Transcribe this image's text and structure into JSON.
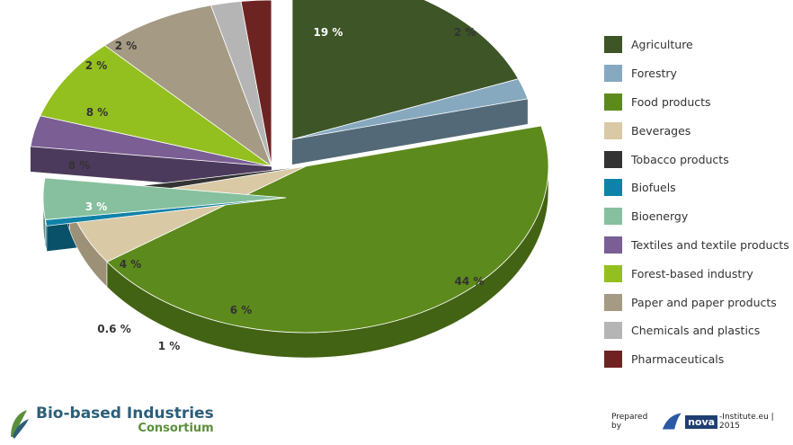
{
  "chart_data": {
    "type": "pie",
    "title": "",
    "style": "3d-exploded",
    "legend_position": "right",
    "slices": [
      {
        "label": "Agriculture",
        "value": 19,
        "value_label": "19 %",
        "color": "#3d5527"
      },
      {
        "label": "Forestry",
        "value": 2,
        "value_label": "2 %",
        "color": "#86a9c0"
      },
      {
        "label": "Food products",
        "value": 44,
        "value_label": "44 %",
        "color": "#5d8a1c"
      },
      {
        "label": "Beverages",
        "value": 6,
        "value_label": "6 %",
        "color": "#d9c9a5"
      },
      {
        "label": "Tobacco products",
        "value": 1,
        "value_label": "1 %",
        "color": "#333333"
      },
      {
        "label": "Biofuels",
        "value": 0.6,
        "value_label": "0.6 %",
        "color": "#0f82a8"
      },
      {
        "label": "Bioenergy",
        "value": 4,
        "value_label": "4 %",
        "color": "#86c09e"
      },
      {
        "label": "Textiles and textile products",
        "value": 3,
        "value_label": "3 %",
        "color": "#7a5e94"
      },
      {
        "label": "Forest-based industry",
        "value": 8,
        "value_label": "8 %",
        "color": "#93c01f"
      },
      {
        "label": "Paper and paper products",
        "value": 8,
        "value_label": "8 %",
        "color": "#a59a84"
      },
      {
        "label": "Chemicals and plastics",
        "value": 2,
        "value_label": "2 %",
        "color": "#b5b5b5"
      },
      {
        "label": "Pharmaceuticals",
        "value": 2,
        "value_label": "2 %",
        "color": "#6e2323"
      }
    ]
  },
  "footer": {
    "org_line1": "Bio-based Industries",
    "org_line2": "Consortium",
    "prepared_by": "Prepared by",
    "logo_text": "nova",
    "institute": "-Institute.eu | 2015"
  }
}
